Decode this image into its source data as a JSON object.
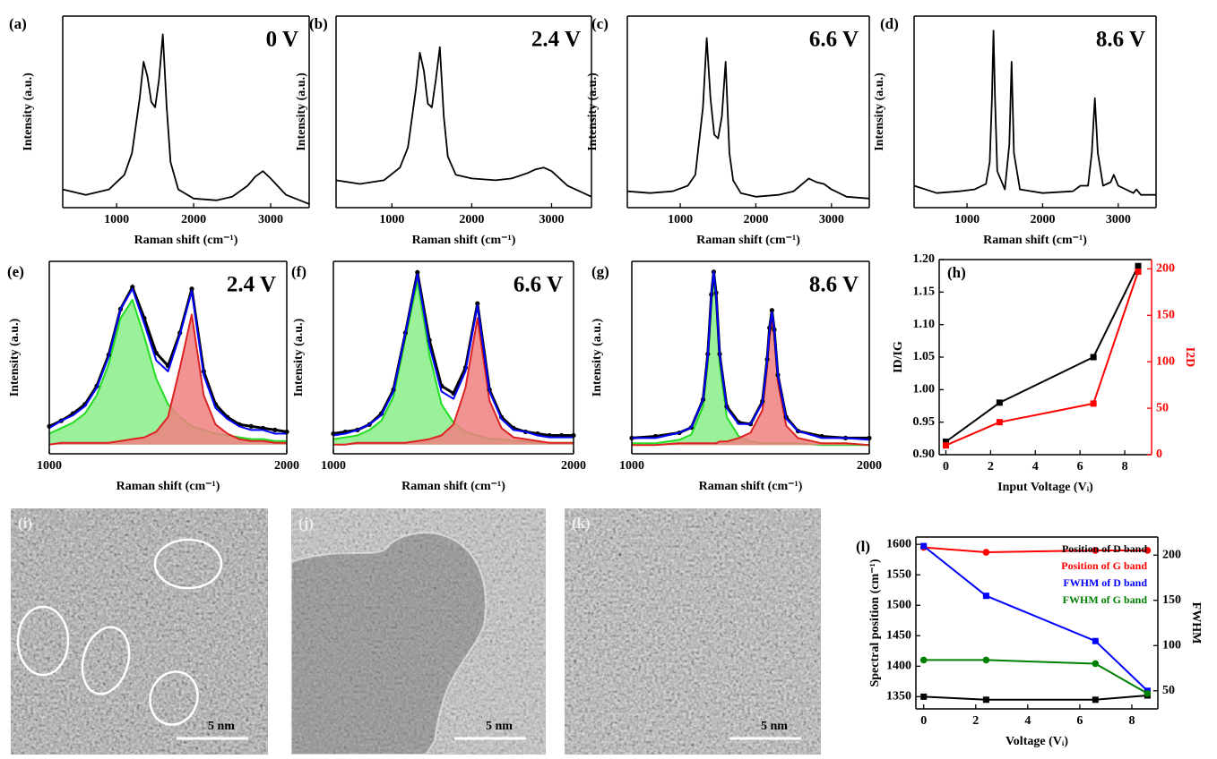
{
  "chart_data": [
    {
      "type": "line",
      "panel_label": "(a)",
      "annotation": "0 V",
      "xlabel": "Raman shift (cm⁻¹)",
      "ylabel": "Intensity (a.u.)",
      "color": "#000000",
      "x": [
        300,
        600,
        900,
        1100,
        1200,
        1300,
        1350,
        1400,
        1450,
        1500,
        1550,
        1600,
        1650,
        1700,
        1800,
        2000,
        2300,
        2500,
        2700,
        2800,
        2900,
        3000,
        3200,
        3500
      ],
      "values": [
        0.1,
        0.07,
        0.1,
        0.18,
        0.3,
        0.6,
        0.8,
        0.72,
        0.58,
        0.55,
        0.7,
        0.95,
        0.55,
        0.25,
        0.1,
        0.05,
        0.04,
        0.06,
        0.12,
        0.17,
        0.2,
        0.16,
        0.07,
        0.02
      ],
      "xlim": [
        300,
        3500
      ],
      "xticks": [
        1000,
        2000,
        3000
      ],
      "ylim": [
        0,
        1.05
      ]
    },
    {
      "type": "line",
      "panel_label": "(b)",
      "annotation": "2.4 V",
      "xlabel": "Raman shift (cm⁻¹)",
      "ylabel": "Intensity (a.u.)",
      "color": "#000000",
      "x": [
        300,
        600,
        900,
        1100,
        1200,
        1300,
        1350,
        1400,
        1450,
        1500,
        1550,
        1600,
        1650,
        1700,
        1800,
        2000,
        2300,
        2500,
        2700,
        2800,
        2900,
        3000,
        3200,
        3500
      ],
      "values": [
        0.15,
        0.13,
        0.15,
        0.22,
        0.33,
        0.65,
        0.85,
        0.75,
        0.57,
        0.55,
        0.7,
        0.88,
        0.5,
        0.28,
        0.18,
        0.16,
        0.15,
        0.16,
        0.19,
        0.21,
        0.22,
        0.2,
        0.12,
        0.06
      ],
      "xlim": [
        300,
        3500
      ],
      "xticks": [
        1000,
        2000,
        3000
      ],
      "ylim": [
        0,
        1.05
      ]
    },
    {
      "type": "line",
      "panel_label": "(c)",
      "annotation": "6.6 V",
      "xlabel": "Raman shift (cm⁻¹)",
      "ylabel": "Intensity (a.u.)",
      "color": "#000000",
      "x": [
        300,
        600,
        900,
        1100,
        1200,
        1300,
        1350,
        1400,
        1450,
        1500,
        1550,
        1600,
        1650,
        1700,
        1800,
        2000,
        2300,
        2500,
        2700,
        2800,
        2900,
        3000,
        3200,
        3500
      ],
      "values": [
        0.09,
        0.08,
        0.09,
        0.12,
        0.18,
        0.55,
        0.93,
        0.6,
        0.4,
        0.38,
        0.5,
        0.8,
        0.3,
        0.15,
        0.08,
        0.06,
        0.07,
        0.09,
        0.16,
        0.14,
        0.13,
        0.1,
        0.06,
        0.05
      ],
      "xlim": [
        300,
        3500
      ],
      "xticks": [
        1000,
        2000,
        3000
      ],
      "ylim": [
        0,
        1.05
      ]
    },
    {
      "type": "line",
      "panel_label": "(d)",
      "annotation": "8.6 V",
      "xlabel": "Raman shift (cm⁻¹)",
      "ylabel": "Intensity (a.u.)",
      "color": "#000000",
      "x": [
        300,
        600,
        900,
        1100,
        1250,
        1300,
        1330,
        1350,
        1370,
        1400,
        1500,
        1560,
        1590,
        1620,
        1700,
        2000,
        2400,
        2500,
        2600,
        2650,
        2690,
        2730,
        2800,
        2900,
        2940,
        3000,
        3200,
        3240,
        3300,
        3500
      ],
      "values": [
        0.12,
        0.08,
        0.09,
        0.1,
        0.13,
        0.25,
        0.6,
        0.97,
        0.6,
        0.2,
        0.1,
        0.35,
        0.8,
        0.3,
        0.1,
        0.08,
        0.09,
        0.12,
        0.12,
        0.3,
        0.6,
        0.3,
        0.12,
        0.14,
        0.18,
        0.12,
        0.08,
        0.1,
        0.07,
        0.07
      ],
      "xlim": [
        300,
        3500
      ],
      "xticks": [
        1000,
        2000,
        3000
      ],
      "ylim": [
        0,
        1.05
      ]
    },
    {
      "type": "line",
      "panel_label": "(e)",
      "annotation": "2.4 V",
      "xlabel": "Raman shift (cm⁻¹)",
      "ylabel": "Intensity (a.u.)",
      "x": [
        1000,
        1050,
        1100,
        1150,
        1200,
        1250,
        1300,
        1350,
        1400,
        1450,
        1500,
        1550,
        1600,
        1650,
        1700,
        1750,
        1800,
        1850,
        1900,
        1950,
        2000
      ],
      "series": [
        {
          "color": "#22dd22",
          "fill": "#88ee88",
          "values": [
            0.06,
            0.09,
            0.12,
            0.17,
            0.27,
            0.44,
            0.69,
            0.79,
            0.59,
            0.36,
            0.22,
            0.15,
            0.1,
            0.08,
            0.06,
            0.05,
            0.04,
            0.03,
            0.03,
            0.02,
            0.02
          ]
        },
        {
          "color": "#dd2222",
          "fill": "#f08080",
          "values": [
            0,
            0.01,
            0.01,
            0.01,
            0.01,
            0.01,
            0.02,
            0.03,
            0.04,
            0.07,
            0.15,
            0.42,
            0.71,
            0.27,
            0.11,
            0.06,
            0.03,
            0.02,
            0.02,
            0.01,
            0.01
          ]
        },
        {
          "color": "#000000",
          "marker": "dot",
          "values": [
            0.1,
            0.13,
            0.17,
            0.22,
            0.32,
            0.49,
            0.74,
            0.86,
            0.69,
            0.5,
            0.43,
            0.61,
            0.85,
            0.4,
            0.22,
            0.15,
            0.11,
            0.1,
            0.09,
            0.08,
            0.07
          ]
        },
        {
          "color": "#0000ff",
          "values": [
            0.09,
            0.13,
            0.16,
            0.21,
            0.31,
            0.48,
            0.74,
            0.85,
            0.66,
            0.46,
            0.4,
            0.6,
            0.84,
            0.38,
            0.2,
            0.14,
            0.1,
            0.08,
            0.08,
            0.06,
            0.06
          ]
        }
      ],
      "xlim": [
        1000,
        2000
      ],
      "xticks": [
        1000,
        2000
      ],
      "ylim": [
        -0.05,
        1.0
      ]
    },
    {
      "type": "line",
      "panel_label": "(f)",
      "annotation": "6.6 V",
      "xlabel": "Raman shift (cm⁻¹)",
      "ylabel": "Intensity (a.u.)",
      "x": [
        1000,
        1050,
        1100,
        1150,
        1200,
        1250,
        1300,
        1350,
        1400,
        1450,
        1500,
        1550,
        1600,
        1650,
        1700,
        1750,
        1800,
        1850,
        1900,
        1950,
        2000
      ],
      "series": [
        {
          "color": "#22dd22",
          "fill": "#88ee88",
          "values": [
            0.03,
            0.04,
            0.05,
            0.08,
            0.13,
            0.26,
            0.58,
            0.89,
            0.49,
            0.22,
            0.12,
            0.07,
            0.05,
            0.03,
            0.03,
            0.02,
            0.02,
            0.01,
            0.01,
            0.01,
            0.01
          ]
        },
        {
          "color": "#dd2222",
          "fill": "#f08080",
          "values": [
            0,
            0,
            0.01,
            0.01,
            0.01,
            0.01,
            0.01,
            0.02,
            0.03,
            0.05,
            0.11,
            0.31,
            0.69,
            0.24,
            0.09,
            0.04,
            0.03,
            0.02,
            0.01,
            0.01,
            0.01
          ]
        },
        {
          "color": "#000000",
          "marker": "dot",
          "values": [
            0.06,
            0.07,
            0.08,
            0.11,
            0.17,
            0.3,
            0.61,
            0.94,
            0.57,
            0.32,
            0.28,
            0.42,
            0.77,
            0.3,
            0.15,
            0.09,
            0.07,
            0.06,
            0.05,
            0.05,
            0.05
          ]
        },
        {
          "color": "#0000ff",
          "values": [
            0.05,
            0.06,
            0.08,
            0.11,
            0.16,
            0.29,
            0.61,
            0.93,
            0.54,
            0.29,
            0.25,
            0.4,
            0.76,
            0.29,
            0.14,
            0.08,
            0.07,
            0.05,
            0.04,
            0.04,
            0.04
          ]
        }
      ],
      "xlim": [
        1000,
        2000
      ],
      "xticks": [
        1000,
        2000
      ],
      "ylim": [
        -0.05,
        1.0
      ]
    },
    {
      "type": "line",
      "panel_label": "(g)",
      "annotation": "8.6 V",
      "xlabel": "Raman shift (cm⁻¹)",
      "ylabel": "Intensity (a.u.)",
      "x": [
        1000,
        1100,
        1200,
        1250,
        1300,
        1320,
        1335,
        1345,
        1355,
        1370,
        1400,
        1450,
        1500,
        1550,
        1570,
        1580,
        1590,
        1600,
        1615,
        1650,
        1700,
        1800,
        1900,
        2000
      ],
      "series": [
        {
          "color": "#22dd22",
          "fill": "#88ee88",
          "values": [
            0.01,
            0.01,
            0.03,
            0.06,
            0.22,
            0.47,
            0.82,
            0.95,
            0.82,
            0.47,
            0.16,
            0.05,
            0.02,
            0.01,
            0.01,
            0.01,
            0.01,
            0.01,
            0.01,
            0.01,
            0.01,
            0,
            0,
            0
          ]
        },
        {
          "color": "#dd2222",
          "fill": "#f08080",
          "values": [
            0,
            0,
            0.01,
            0.01,
            0.01,
            0.01,
            0.01,
            0.01,
            0.01,
            0.02,
            0.02,
            0.04,
            0.07,
            0.2,
            0.44,
            0.62,
            0.72,
            0.62,
            0.36,
            0.11,
            0.04,
            0.01,
            0.01,
            0
          ]
        },
        {
          "color": "#000000",
          "marker": "dot",
          "values": [
            0.04,
            0.05,
            0.07,
            0.1,
            0.26,
            0.52,
            0.86,
            0.99,
            0.87,
            0.52,
            0.22,
            0.13,
            0.12,
            0.25,
            0.49,
            0.67,
            0.77,
            0.66,
            0.4,
            0.16,
            0.08,
            0.05,
            0.04,
            0.04
          ]
        },
        {
          "color": "#0000ff",
          "values": [
            0.04,
            0.04,
            0.07,
            0.1,
            0.26,
            0.51,
            0.86,
            0.99,
            0.86,
            0.52,
            0.21,
            0.12,
            0.12,
            0.24,
            0.48,
            0.66,
            0.76,
            0.66,
            0.4,
            0.15,
            0.08,
            0.04,
            0.04,
            0.03
          ]
        }
      ],
      "xlim": [
        1000,
        2000
      ],
      "xticks": [
        1000,
        2000
      ],
      "ylim": [
        -0.05,
        1.05
      ]
    },
    {
      "type": "line",
      "panel_label": "(h)",
      "xlabel": "Input Voltage (Vᵢ)",
      "ylabel": "ID/IG",
      "y2label": "I2D",
      "y2_color": "#ff0000",
      "x": [
        0,
        2.4,
        6.6,
        8.6
      ],
      "series": [
        {
          "color": "#000000",
          "marker": "square",
          "values": [
            0.92,
            0.98,
            1.05,
            1.19
          ]
        },
        {
          "color": "#ff0000",
          "marker": "square",
          "axis": "y2",
          "values": [
            10,
            35,
            55,
            197
          ]
        }
      ],
      "xlim": [
        -0.3,
        9.2
      ],
      "xticks": [
        0,
        2,
        4,
        6,
        8
      ],
      "ylim": [
        0.9,
        1.2
      ],
      "yticks": [
        {
          "value": 0.9,
          "label": "0.90"
        },
        0.95,
        {
          "value": 1.0,
          "label": "1.00"
        },
        1.05,
        {
          "value": 1.1,
          "label": "1.10"
        },
        1.15,
        {
          "value": 1.2,
          "label": "1.20"
        }
      ],
      "y2lim": [
        0,
        210
      ],
      "y2ticks": [
        0,
        50,
        100,
        150,
        200
      ]
    },
    {
      "type": "line",
      "panel_label": "(l)",
      "xlabel": "Voltage (Vᵢ)",
      "ylabel": "Spectral position (cm⁻¹)",
      "y2label": "FWHM",
      "y2_color": "#000000",
      "legend": "top-right",
      "x": [
        0,
        2.4,
        6.6,
        8.6
      ],
      "series": [
        {
          "name": "Position of D band",
          "color": "#000000",
          "marker": "square",
          "values": [
            1350,
            1345,
            1345,
            1352
          ]
        },
        {
          "name": "Position of G band",
          "color": "#ff0000",
          "marker": "circle",
          "values": [
            1595,
            1587,
            1590,
            1590
          ]
        },
        {
          "name": "FWHM  of D band",
          "color": "#0000ff",
          "marker": "square",
          "axis": "y2",
          "values": [
            210,
            155,
            105,
            50
          ]
        },
        {
          "name": "FWHM  of G band",
          "color": "#008000",
          "marker": "circle",
          "axis": "y2",
          "values": [
            84,
            84,
            80,
            47
          ]
        }
      ],
      "xlim": [
        -0.3,
        9
      ],
      "xticks": [
        0,
        2,
        4,
        6,
        8
      ],
      "ylim": [
        1330,
        1612
      ],
      "yticks": [
        1350,
        1400,
        1450,
        1500,
        1550,
        1600
      ],
      "y2lim": [
        30,
        220
      ],
      "y2ticks": [
        50,
        100,
        150,
        200
      ]
    }
  ],
  "images": [
    {
      "label": "(i)",
      "scale_bar": "5 nm"
    },
    {
      "label": "(j)",
      "scale_bar": "5 nm"
    },
    {
      "label": "(k)",
      "scale_bar": "5 nm"
    }
  ]
}
